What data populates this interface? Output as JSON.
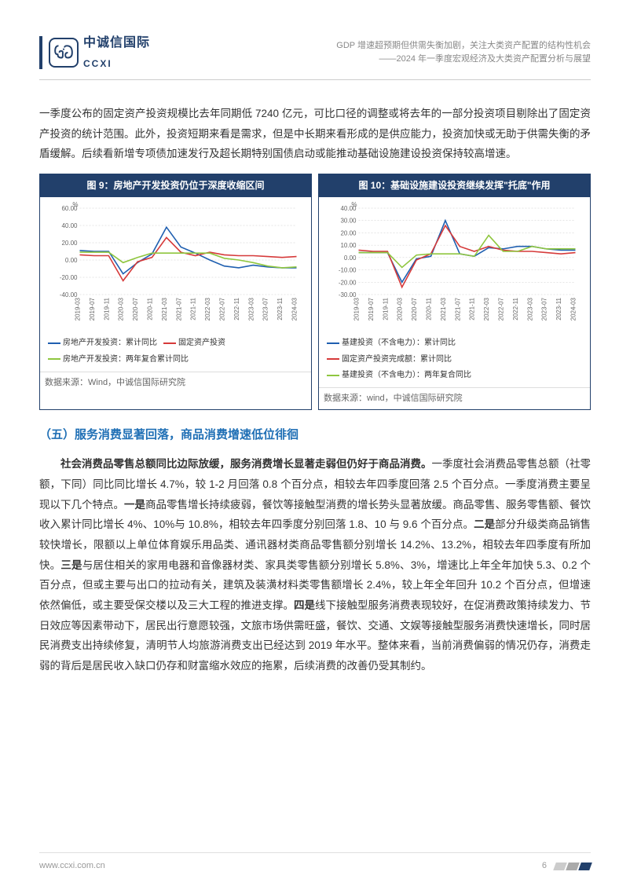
{
  "header": {
    "logo_cn": "中诚信国际",
    "logo_en": "CCXI",
    "line1": "GDP 增速超预期但供需失衡加剧，关注大类资产配置的结构性机会",
    "line2": "——2024 年一季度宏观经济及大类资产配置分析与展望"
  },
  "para1": "一季度公布的固定资产投资规模比去年同期低 7240 亿元，可比口径的调整或将去年的一部分投资项目剔除出了固定资产投资的统计范围。此外，投资短期来看是需求，但是中长期来看形成的是供应能力，投资加快或无助于供需失衡的矛盾缓解。后续看新增专项债加速发行及超长期特别国债启动或能推动基础设施建设投资保持较高增速。",
  "chart9": {
    "title": "图 9：房地产开发投资仍位于深度收缩区间",
    "ylabel": "%",
    "ylim": [
      -40,
      60
    ],
    "ytick_step": 20,
    "yticks": [
      "-40.00",
      "-20.00",
      "0.00",
      "20.00",
      "40.00",
      "60.00"
    ],
    "xticks": [
      "2019-03",
      "2019-07",
      "2019-11",
      "2020-03",
      "2020-07",
      "2020-11",
      "2021-03",
      "2021-07",
      "2021-11",
      "2022-03",
      "2022-07",
      "2022-11",
      "2023-03",
      "2023-07",
      "2023-11",
      "2024-03"
    ],
    "series": [
      {
        "name": "房地产开发投资：累计同比",
        "color": "#1f5fb0",
        "values": [
          11,
          10,
          10,
          -16,
          -3,
          7,
          38,
          15,
          8,
          0,
          -7,
          -9,
          -6,
          -8,
          -9,
          -9
        ]
      },
      {
        "name": "固定资产投资",
        "color": "#d63a3a",
        "values": [
          6,
          5,
          5,
          -24,
          -2,
          3,
          26,
          9,
          5,
          9,
          6,
          5,
          5,
          4,
          3,
          4
        ]
      },
      {
        "name": "房地产开发投资：两年复合累计同比",
        "color": "#8fc63f",
        "values": [
          9,
          9,
          9,
          -3,
          3,
          8,
          8,
          8,
          8,
          8,
          2,
          0,
          -3,
          -7,
          -9,
          -8
        ]
      }
    ],
    "source": "数据来源：Wind，中诚信国际研究院",
    "grid_color": "#cccccc",
    "background_color": "#ffffff"
  },
  "chart10": {
    "title": "图 10：基础设施建设投资继续发挥\"托底\"作用",
    "ylabel": "%",
    "ylim": [
      -30,
      40
    ],
    "ytick_step": 10,
    "yticks": [
      "-30.00",
      "-20.00",
      "-10.00",
      "0.00",
      "10.00",
      "20.00",
      "30.00",
      "40.00"
    ],
    "xticks": [
      "2019-03",
      "2019-07",
      "2019-11",
      "2020-03",
      "2020-07",
      "2020-11",
      "2021-03",
      "2021-07",
      "2021-11",
      "2022-03",
      "2022-07",
      "2022-11",
      "2023-03",
      "2023-07",
      "2023-11",
      "2024-03"
    ],
    "series": [
      {
        "name": "基建投资（不含电力）：累计同比",
        "color": "#1f5fb0",
        "values": [
          4,
          4,
          4,
          -20,
          -1,
          1,
          30,
          3,
          1,
          8,
          7,
          9,
          9,
          7,
          6,
          6
        ]
      },
      {
        "name": "固定资产投资完成额：累计同比",
        "color": "#d63a3a",
        "values": [
          6,
          5,
          5,
          -24,
          -2,
          3,
          26,
          9,
          5,
          9,
          6,
          5,
          5,
          4,
          3,
          4
        ]
      },
      {
        "name": "基建投资（不含电力）：两年复合同比",
        "color": "#8fc63f",
        "values": [
          4,
          4,
          4,
          -8,
          2,
          3,
          3,
          3,
          1,
          18,
          5,
          5,
          9,
          7,
          7,
          7
        ]
      }
    ],
    "source": "数据来源：wind，中诚信国际研究院",
    "grid_color": "#cccccc",
    "background_color": "#ffffff"
  },
  "section_title": "（五）服务消费显著回落，商品消费增速低位徘徊",
  "para2_lead": "社会消费品零售总额同比边际放缓，服务消费增长显著走弱但仍好于商品消费。",
  "para2_body": "一季度社会消费品零售总额（社零额，下同）同比同比增长 4.7%，较 1-2 月回落 0.8 个百分点，相较去年四季度回落 2.5 个百分点。一季度消费主要呈现以下几个特点。",
  "p1_label": "一是",
  "p1_text": "商品零售增长持续疲弱，餐饮等接触型消费的增长势头显著放缓。商品零售、服务零售额、餐饮收入累计同比增长 4%、10%与 10.8%，相较去年四季度分别回落 1.8、10 与 9.6 个百分点。",
  "p2_label": "二是",
  "p2_text": "部分升级类商品销售较快增长，限额以上单位体育娱乐用品类、通讯器材类商品零售额分别增长 14.2%、13.2%，相较去年四季度有所加快。",
  "p3_label": "三是",
  "p3_text": "与居住相关的家用电器和音像器材类、家具类零售额分别增长 5.8%、3%，增速比上年全年加快 5.3、0.2 个百分点，但或主要与出口的拉动有关，建筑及装潢材料类零售额增长 2.4%，较上年全年回升 10.2 个百分点，但增速依然偏低，或主要受保交楼以及三大工程的推进支撑。",
  "p4_label": "四是",
  "p4_text": "线下接触型服务消费表现较好，在促消费政策持续发力、节日效应等因素带动下，居民出行意愿较强，文旅市场供需旺盛，餐饮、交通、文娱等接触型服务消费快速增长，同时居民消费支出持续修复，清明节人均旅游消费支出已经达到 2019 年水平。整体来看，当前消费偏弱的情况仍存，消费走弱的背后是居民收入缺口仍存和财富缩水效应的拖累，后续消费的改善仍受其制约。",
  "footer": {
    "url": "www.ccxi.com.cn",
    "page": "6"
  }
}
